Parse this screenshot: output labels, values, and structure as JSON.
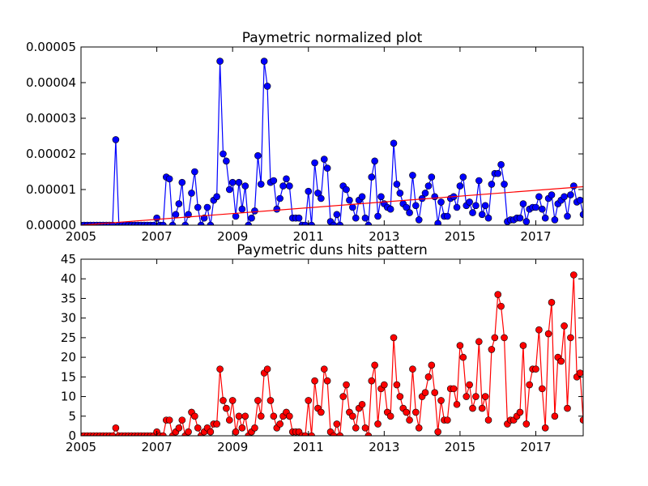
{
  "chart_data": [
    {
      "type": "line",
      "title": "Paymetric normalized plot",
      "x": [
        2005,
        2005.083,
        2005.167,
        2005.25,
        2005.333,
        2005.417,
        2005.5,
        2005.583,
        2005.667,
        2005.75,
        2005.833,
        2005.917,
        2006,
        2006.083,
        2006.167,
        2006.25,
        2006.333,
        2006.417,
        2006.5,
        2006.583,
        2006.667,
        2006.75,
        2006.833,
        2006.917,
        2007,
        2007.083,
        2007.167,
        2007.25,
        2007.333,
        2007.417,
        2007.5,
        2007.583,
        2007.667,
        2007.75,
        2007.833,
        2007.917,
        2008,
        2008.083,
        2008.167,
        2008.25,
        2008.333,
        2008.417,
        2008.5,
        2008.583,
        2008.667,
        2008.75,
        2008.833,
        2008.917,
        2009,
        2009.083,
        2009.167,
        2009.25,
        2009.333,
        2009.417,
        2009.5,
        2009.583,
        2009.667,
        2009.75,
        2009.833,
        2009.917,
        2010,
        2010.083,
        2010.167,
        2010.25,
        2010.333,
        2010.417,
        2010.5,
        2010.583,
        2010.667,
        2010.75,
        2010.833,
        2010.917,
        2011,
        2011.083,
        2011.167,
        2011.25,
        2011.333,
        2011.417,
        2011.5,
        2011.583,
        2011.667,
        2011.75,
        2011.833,
        2011.917,
        2012,
        2012.083,
        2012.167,
        2012.25,
        2012.333,
        2012.417,
        2012.5,
        2012.583,
        2012.667,
        2012.75,
        2012.833,
        2012.917,
        2013,
        2013.083,
        2013.167,
        2013.25,
        2013.333,
        2013.417,
        2013.5,
        2013.583,
        2013.667,
        2013.75,
        2013.833,
        2013.917,
        2014,
        2014.083,
        2014.167,
        2014.25,
        2014.333,
        2014.417,
        2014.5,
        2014.583,
        2014.667,
        2014.75,
        2014.833,
        2014.917,
        2015,
        2015.083,
        2015.167,
        2015.25,
        2015.333,
        2015.417,
        2015.5,
        2015.583,
        2015.667,
        2015.75,
        2015.833,
        2015.917,
        2016,
        2016.083,
        2016.167,
        2016.25,
        2016.333,
        2016.417,
        2016.5,
        2016.583,
        2016.667,
        2016.75,
        2016.833,
        2016.917,
        2017,
        2017.083,
        2017.167,
        2017.25,
        2017.333,
        2017.417,
        2017.5,
        2017.583,
        2017.667,
        2017.75,
        2017.833,
        2017.917,
        2018,
        2018.083,
        2018.167,
        2018.25
      ],
      "series": [
        {
          "color": "#0000ff",
          "values": [
            0,
            0,
            0,
            0,
            0,
            0,
            0,
            0,
            0,
            0,
            0,
            2.4e-05,
            0,
            0,
            0,
            0,
            0,
            0,
            0,
            0,
            0,
            0,
            0,
            0,
            2e-06,
            0,
            0,
            1.35e-05,
            1.3e-05,
            0,
            3e-06,
            6e-06,
            1.2e-05,
            0,
            3e-06,
            9e-06,
            1.5e-05,
            5e-06,
            0,
            2e-06,
            5e-06,
            0,
            7e-06,
            8e-06,
            4.6e-05,
            2e-05,
            1.8e-05,
            1e-05,
            1.2e-05,
            2.5e-06,
            1.2e-05,
            4.5e-06,
            1.1e-05,
            0,
            2e-06,
            4e-06,
            1.95e-05,
            1.15e-05,
            4.6e-05,
            3.9e-05,
            1.2e-05,
            1.25e-05,
            4.5e-06,
            7.5e-06,
            1.1e-05,
            1.3e-05,
            1.1e-05,
            2e-06,
            2e-06,
            2e-06,
            0,
            0,
            9.5e-06,
            0,
            1.75e-05,
            9e-06,
            7.5e-06,
            1.85e-05,
            1.6e-05,
            1e-06,
            0,
            3e-06,
            0,
            1.1e-05,
            1e-05,
            7e-06,
            5e-06,
            2e-06,
            7e-06,
            8e-06,
            2e-06,
            0,
            1.35e-05,
            1.8e-05,
            2.5e-06,
            8e-06,
            6e-06,
            5e-06,
            4.5e-06,
            2.3e-05,
            1.15e-05,
            9e-06,
            6e-06,
            5e-06,
            3.5e-06,
            1.4e-05,
            5.5e-06,
            1.5e-06,
            7.5e-06,
            9e-06,
            1.1e-05,
            1.35e-05,
            8e-06,
            5e-07,
            6.5e-06,
            2.5e-06,
            2.5e-06,
            7.5e-06,
            8e-06,
            5e-06,
            1.1e-05,
            1.35e-05,
            5.5e-06,
            6.5e-06,
            3.5e-06,
            5.5e-06,
            1.25e-05,
            3e-06,
            5.5e-06,
            2e-06,
            1.15e-05,
            1.45e-05,
            1.45e-05,
            1.7e-05,
            1.15e-05,
            1e-06,
            1.5e-06,
            1.5e-06,
            2e-06,
            2e-06,
            6e-06,
            1e-06,
            4.5e-06,
            5e-06,
            5e-06,
            8e-06,
            4.5e-06,
            2e-06,
            7.5e-06,
            8.5e-06,
            1.5e-06,
            6e-06,
            7e-06,
            8e-06,
            2.5e-06,
            8.5e-06,
            1.1e-05,
            6.5e-06,
            7e-06,
            3e-06
          ]
        }
      ],
      "trend": {
        "color": "#ff0000",
        "x": [
          2005,
          2018.25
        ],
        "values": [
          0,
          1.08e-05
        ]
      },
      "xlim": [
        2005,
        2018.25
      ],
      "xticks": [
        2005,
        2007,
        2009,
        2011,
        2013,
        2015,
        2017
      ],
      "ylim": [
        0,
        5e-05
      ],
      "yticks": [
        {
          "value": 0,
          "label": "0.00000"
        },
        {
          "value": 1e-05,
          "label": "0.00001"
        },
        {
          "value": 2e-05,
          "label": "0.00002"
        },
        {
          "value": 3e-05,
          "label": "0.00003"
        },
        {
          "value": 4e-05,
          "label": "0.00004"
        },
        {
          "value": 5e-05,
          "label": "0.00005"
        }
      ],
      "grid": false
    },
    {
      "type": "line",
      "title": "Paymetric duns hits pattern",
      "x": [
        2005,
        2005.083,
        2005.167,
        2005.25,
        2005.333,
        2005.417,
        2005.5,
        2005.583,
        2005.667,
        2005.75,
        2005.833,
        2005.917,
        2006,
        2006.083,
        2006.167,
        2006.25,
        2006.333,
        2006.417,
        2006.5,
        2006.583,
        2006.667,
        2006.75,
        2006.833,
        2006.917,
        2007,
        2007.083,
        2007.167,
        2007.25,
        2007.333,
        2007.417,
        2007.5,
        2007.583,
        2007.667,
        2007.75,
        2007.833,
        2007.917,
        2008,
        2008.083,
        2008.167,
        2008.25,
        2008.333,
        2008.417,
        2008.5,
        2008.583,
        2008.667,
        2008.75,
        2008.833,
        2008.917,
        2009,
        2009.083,
        2009.167,
        2009.25,
        2009.333,
        2009.417,
        2009.5,
        2009.583,
        2009.667,
        2009.75,
        2009.833,
        2009.917,
        2010,
        2010.083,
        2010.167,
        2010.25,
        2010.333,
        2010.417,
        2010.5,
        2010.583,
        2010.667,
        2010.75,
        2010.833,
        2010.917,
        2011,
        2011.083,
        2011.167,
        2011.25,
        2011.333,
        2011.417,
        2011.5,
        2011.583,
        2011.667,
        2011.75,
        2011.833,
        2011.917,
        2012,
        2012.083,
        2012.167,
        2012.25,
        2012.333,
        2012.417,
        2012.5,
        2012.583,
        2012.667,
        2012.75,
        2012.833,
        2012.917,
        2013,
        2013.083,
        2013.167,
        2013.25,
        2013.333,
        2013.417,
        2013.5,
        2013.583,
        2013.667,
        2013.75,
        2013.833,
        2013.917,
        2014,
        2014.083,
        2014.167,
        2014.25,
        2014.333,
        2014.417,
        2014.5,
        2014.583,
        2014.667,
        2014.75,
        2014.833,
        2014.917,
        2015,
        2015.083,
        2015.167,
        2015.25,
        2015.333,
        2015.417,
        2015.5,
        2015.583,
        2015.667,
        2015.75,
        2015.833,
        2015.917,
        2016,
        2016.083,
        2016.167,
        2016.25,
        2016.333,
        2016.417,
        2016.5,
        2016.583,
        2016.667,
        2016.75,
        2016.833,
        2016.917,
        2017,
        2017.083,
        2017.167,
        2017.25,
        2017.333,
        2017.417,
        2017.5,
        2017.583,
        2017.667,
        2017.75,
        2017.833,
        2017.917,
        2018,
        2018.083,
        2018.167,
        2018.25
      ],
      "series": [
        {
          "color": "#ff0000",
          "values": [
            0,
            0,
            0,
            0,
            0,
            0,
            0,
            0,
            0,
            0,
            0,
            2,
            0,
            0,
            0,
            0,
            0,
            0,
            0,
            0,
            0,
            0,
            0,
            0,
            1,
            0,
            0,
            4,
            4,
            0,
            1,
            2,
            4,
            0,
            1,
            6,
            5,
            2,
            0,
            1,
            2,
            1,
            3,
            3,
            17,
            9,
            7,
            4,
            9,
            1,
            5,
            2,
            5,
            0,
            1,
            2,
            9,
            5,
            16,
            17,
            9,
            5,
            2,
            3,
            5,
            6,
            5,
            1,
            1,
            1,
            0,
            0,
            9,
            0,
            14,
            7,
            6,
            17,
            14,
            1,
            0,
            3,
            0,
            10,
            13,
            6,
            5,
            2,
            7,
            8,
            2,
            0,
            14,
            18,
            3,
            12,
            13,
            6,
            5,
            25,
            13,
            10,
            7,
            6,
            4,
            17,
            6,
            2,
            10,
            11,
            15,
            18,
            11,
            1,
            9,
            4,
            4,
            12,
            12,
            8,
            23,
            20,
            10,
            13,
            7,
            10,
            24,
            7,
            10,
            4,
            22,
            25,
            36,
            33,
            25,
            3,
            4,
            4,
            5,
            6,
            23,
            3,
            13,
            17,
            17,
            27,
            12,
            2,
            26,
            34,
            5,
            20,
            19,
            28,
            7,
            25,
            41,
            15,
            16,
            4
          ]
        }
      ],
      "xlim": [
        2005,
        2018.25
      ],
      "xticks": [
        2005,
        2007,
        2009,
        2011,
        2013,
        2015,
        2017
      ],
      "ylim": [
        0,
        45
      ],
      "yticks": [
        0,
        5,
        10,
        15,
        20,
        25,
        30,
        35,
        40,
        45
      ],
      "grid": false
    }
  ]
}
